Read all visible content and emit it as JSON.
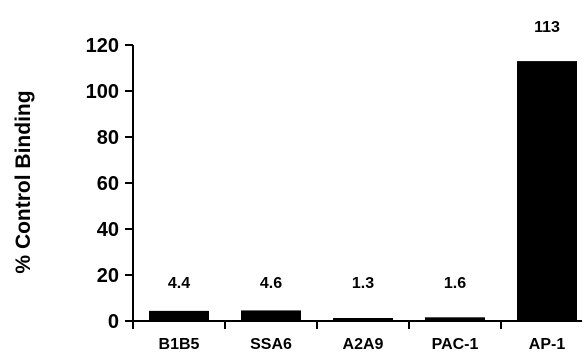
{
  "chart_data": {
    "type": "bar",
    "title": "",
    "xlabel": "",
    "ylabel": "% Control Binding",
    "categories": [
      "B1B5",
      "SSA6",
      "A2A9",
      "PAC-1",
      "AP-1"
    ],
    "values": [
      4.4,
      4.6,
      1.3,
      1.6,
      113
    ],
    "data_labels": [
      "4.4",
      "4.6",
      "1.3",
      "1.6",
      "113"
    ],
    "ylim": [
      0,
      120
    ],
    "yticks": [
      0,
      20,
      40,
      60,
      80,
      100,
      120
    ],
    "grid": false,
    "legend": "none",
    "bar_color": "#000000"
  }
}
